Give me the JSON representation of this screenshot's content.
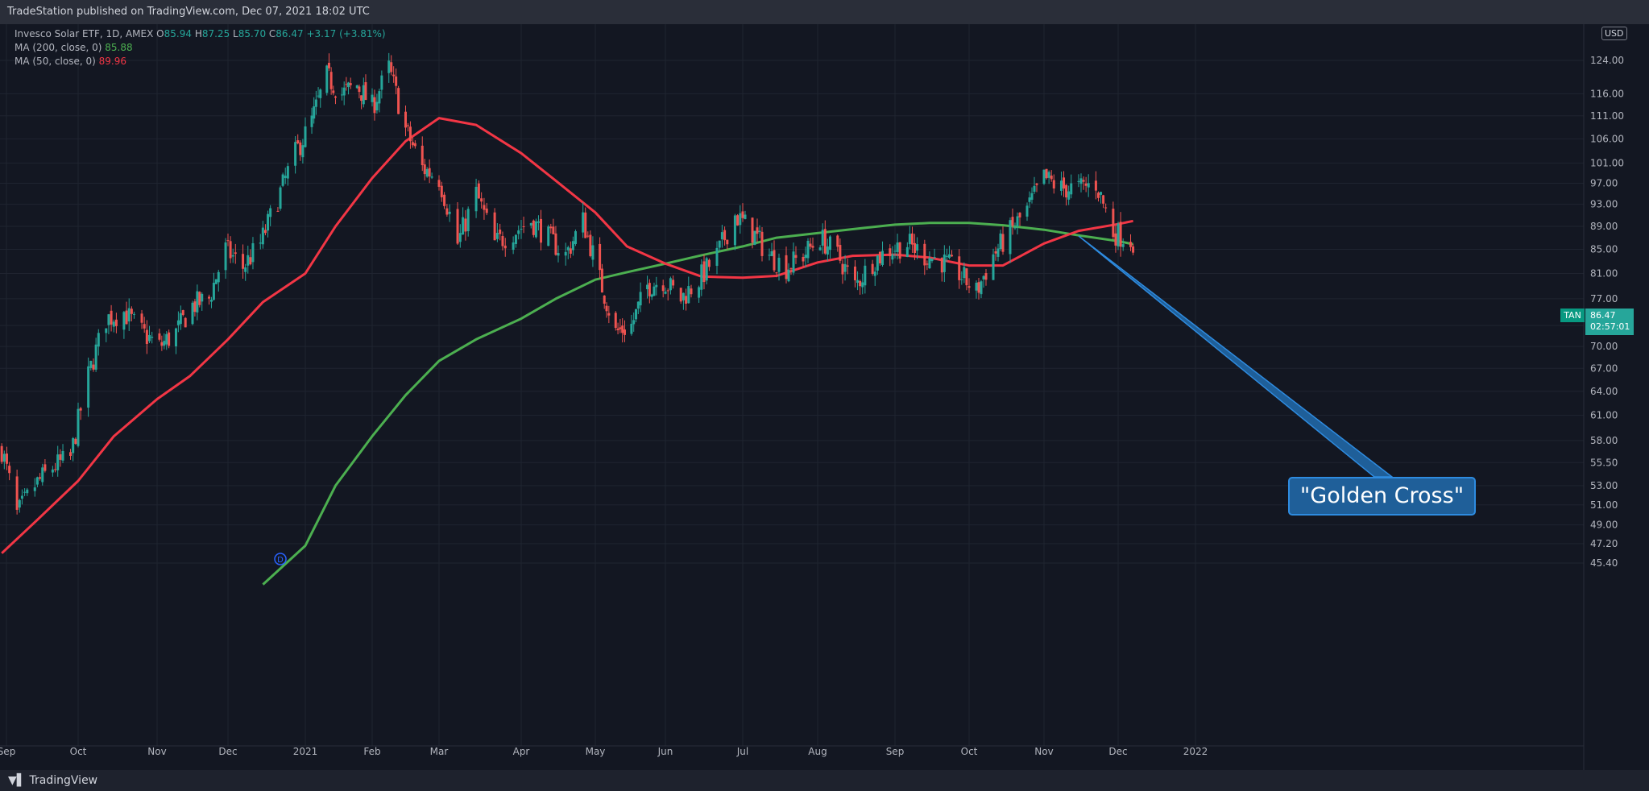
{
  "header": {
    "published": "TradeStation published on TradingView.com, Dec 07, 2021 18:02 UTC"
  },
  "legend": {
    "title": "Invesco Solar ETF, 1D, AMEX",
    "o_label": "O",
    "o_value": "85.94",
    "h_label": "H",
    "h_value": "87.25",
    "l_label": "L",
    "l_value": "85.70",
    "c_label": "C",
    "c_value": "86.47",
    "change": "+3.17 (+3.81%)",
    "ma200_label": "MA (200, close, 0)",
    "ma200_value": "85.88",
    "ma50_label": "MA (50, close, 0)",
    "ma50_value": "89.96"
  },
  "currency": "USD",
  "symbol_label": "TAN",
  "last_price": "86.47",
  "countdown": "02:57:01",
  "annotation": "\"Golden Cross\"",
  "footer": {
    "brand": "TradingView"
  },
  "colors": {
    "up": "#26a69a",
    "down": "#ef5350",
    "ma50": "#f23645",
    "ma200": "#4caf50",
    "background": "#131722"
  },
  "chart_data": {
    "type": "candlestick",
    "y_ticks": [
      45.4,
      47.2,
      49.0,
      51.0,
      53.0,
      55.5,
      58.0,
      61.0,
      64.0,
      67.0,
      70.0,
      73.0,
      77.0,
      81.0,
      85.0,
      89.0,
      93.0,
      97.0,
      101.0,
      106.0,
      111.0,
      116.0,
      124.0
    ],
    "y_scale": "log",
    "ylim": [
      45.4,
      134.0
    ],
    "x_ticks": [
      {
        "date": "2020-09-30",
        "label": "Sep"
      },
      {
        "date": "2020-10-01",
        "label": "Oct"
      },
      {
        "date": "2020-11-01",
        "label": "Nov"
      },
      {
        "date": "2020-12-01",
        "label": "Dec"
      },
      {
        "date": "2021-01-01",
        "label": "2021"
      },
      {
        "date": "2021-02-01",
        "label": "Feb"
      },
      {
        "date": "2021-03-01",
        "label": "Mar"
      },
      {
        "date": "2021-04-01",
        "label": "Apr"
      },
      {
        "date": "2021-05-01",
        "label": "May"
      },
      {
        "date": "2021-06-01",
        "label": "Jun"
      },
      {
        "date": "2021-07-01",
        "label": "Jul"
      },
      {
        "date": "2021-08-01",
        "label": "Aug"
      },
      {
        "date": "2021-09-01",
        "label": "Sep"
      },
      {
        "date": "2021-10-01",
        "label": "Oct"
      },
      {
        "date": "2021-11-01",
        "label": "Nov"
      },
      {
        "date": "2021-12-01",
        "label": "Dec"
      },
      {
        "date": "2022-01-01",
        "label": "2022"
      }
    ],
    "close_path": [
      {
        "date": "2020-09-01",
        "close": 57
      },
      {
        "date": "2020-09-07",
        "close": 50
      },
      {
        "date": "2020-09-14",
        "close": 53
      },
      {
        "date": "2020-09-21",
        "close": 55
      },
      {
        "date": "2020-09-28",
        "close": 56
      },
      {
        "date": "2020-10-05",
        "close": 66
      },
      {
        "date": "2020-10-12",
        "close": 74
      },
      {
        "date": "2020-10-19",
        "close": 75
      },
      {
        "date": "2020-10-26",
        "close": 72
      },
      {
        "date": "2020-11-02",
        "close": 70
      },
      {
        "date": "2020-11-09",
        "close": 72
      },
      {
        "date": "2020-11-16",
        "close": 76
      },
      {
        "date": "2020-11-23",
        "close": 77
      },
      {
        "date": "2020-11-30",
        "close": 85
      },
      {
        "date": "2020-12-07",
        "close": 82
      },
      {
        "date": "2020-12-14",
        "close": 86
      },
      {
        "date": "2020-12-21",
        "close": 94
      },
      {
        "date": "2020-12-28",
        "close": 103
      },
      {
        "date": "2021-01-04",
        "close": 110
      },
      {
        "date": "2021-01-11",
        "close": 120
      },
      {
        "date": "2021-01-18",
        "close": 116
      },
      {
        "date": "2021-01-25",
        "close": 118
      },
      {
        "date": "2021-02-01",
        "close": 113
      },
      {
        "date": "2021-02-08",
        "close": 122
      },
      {
        "date": "2021-02-15",
        "close": 108
      },
      {
        "date": "2021-02-22",
        "close": 100
      },
      {
        "date": "2021-03-01",
        "close": 98
      },
      {
        "date": "2021-03-08",
        "close": 86
      },
      {
        "date": "2021-03-15",
        "close": 95
      },
      {
        "date": "2021-03-22",
        "close": 86
      },
      {
        "date": "2021-03-29",
        "close": 88
      },
      {
        "date": "2021-04-05",
        "close": 90
      },
      {
        "date": "2021-04-12",
        "close": 87
      },
      {
        "date": "2021-04-19",
        "close": 84
      },
      {
        "date": "2021-04-26",
        "close": 90
      },
      {
        "date": "2021-05-03",
        "close": 80
      },
      {
        "date": "2021-05-10",
        "close": 72
      },
      {
        "date": "2021-05-17",
        "close": 73
      },
      {
        "date": "2021-05-24",
        "close": 79
      },
      {
        "date": "2021-05-31",
        "close": 80
      },
      {
        "date": "2021-06-07",
        "close": 77
      },
      {
        "date": "2021-06-14",
        "close": 80
      },
      {
        "date": "2021-06-21",
        "close": 84
      },
      {
        "date": "2021-06-28",
        "close": 91
      },
      {
        "date": "2021-07-05",
        "close": 88
      },
      {
        "date": "2021-07-12",
        "close": 84
      },
      {
        "date": "2021-07-19",
        "close": 82
      },
      {
        "date": "2021-07-26",
        "close": 84
      },
      {
        "date": "2021-08-02",
        "close": 87
      },
      {
        "date": "2021-08-09",
        "close": 84
      },
      {
        "date": "2021-08-16",
        "close": 79
      },
      {
        "date": "2021-08-23",
        "close": 83
      },
      {
        "date": "2021-08-30",
        "close": 85
      },
      {
        "date": "2021-09-06",
        "close": 86
      },
      {
        "date": "2021-09-13",
        "close": 84
      },
      {
        "date": "2021-09-20",
        "close": 83
      },
      {
        "date": "2021-09-27",
        "close": 81
      },
      {
        "date": "2021-10-04",
        "close": 78
      },
      {
        "date": "2021-10-11",
        "close": 84
      },
      {
        "date": "2021-10-18",
        "close": 88
      },
      {
        "date": "2021-10-25",
        "close": 92
      },
      {
        "date": "2021-11-01",
        "close": 98
      },
      {
        "date": "2021-11-08",
        "close": 96
      },
      {
        "date": "2021-11-15",
        "close": 96
      },
      {
        "date": "2021-11-22",
        "close": 97
      },
      {
        "date": "2021-11-29",
        "close": 88
      },
      {
        "date": "2021-12-07",
        "close": 86.47
      }
    ],
    "series": [
      {
        "name": "MA (200, close, 0)",
        "points": [
          {
            "date": "2020-12-15",
            "value": 43.5
          },
          {
            "date": "2021-01-01",
            "value": 47
          },
          {
            "date": "2021-01-15",
            "value": 53
          },
          {
            "date": "2021-02-01",
            "value": 58.5
          },
          {
            "date": "2021-02-15",
            "value": 63.5
          },
          {
            "date": "2021-03-01",
            "value": 68
          },
          {
            "date": "2021-03-15",
            "value": 71
          },
          {
            "date": "2021-04-01",
            "value": 74
          },
          {
            "date": "2021-04-15",
            "value": 77
          },
          {
            "date": "2021-05-01",
            "value": 80
          },
          {
            "date": "2021-05-15",
            "value": 81.2
          },
          {
            "date": "2021-06-01",
            "value": 82.6
          },
          {
            "date": "2021-06-15",
            "value": 84
          },
          {
            "date": "2021-07-01",
            "value": 85.5
          },
          {
            "date": "2021-07-15",
            "value": 87
          },
          {
            "date": "2021-08-01",
            "value": 87.8
          },
          {
            "date": "2021-08-15",
            "value": 88.5
          },
          {
            "date": "2021-09-01",
            "value": 89.3
          },
          {
            "date": "2021-09-15",
            "value": 89.6
          },
          {
            "date": "2021-10-01",
            "value": 89.6
          },
          {
            "date": "2021-10-15",
            "value": 89.2
          },
          {
            "date": "2021-11-01",
            "value": 88.4
          },
          {
            "date": "2021-11-15",
            "value": 87.4
          },
          {
            "date": "2021-12-01",
            "value": 86.4
          },
          {
            "date": "2021-12-07",
            "value": 85.88
          }
        ]
      },
      {
        "name": "MA (50, close, 0)",
        "points": [
          {
            "date": "2020-09-01",
            "value": 46.3
          },
          {
            "date": "2020-09-15",
            "value": 49.5
          },
          {
            "date": "2020-10-01",
            "value": 53.5
          },
          {
            "date": "2020-10-15",
            "value": 58.5
          },
          {
            "date": "2020-11-01",
            "value": 63
          },
          {
            "date": "2020-11-15",
            "value": 66
          },
          {
            "date": "2020-12-01",
            "value": 71
          },
          {
            "date": "2020-12-15",
            "value": 76.5
          },
          {
            "date": "2021-01-01",
            "value": 81
          },
          {
            "date": "2021-01-15",
            "value": 89
          },
          {
            "date": "2021-02-01",
            "value": 98
          },
          {
            "date": "2021-02-15",
            "value": 105.5
          },
          {
            "date": "2021-03-01",
            "value": 110.5
          },
          {
            "date": "2021-03-15",
            "value": 109
          },
          {
            "date": "2021-04-01",
            "value": 103
          },
          {
            "date": "2021-04-15",
            "value": 97.5
          },
          {
            "date": "2021-05-01",
            "value": 91.5
          },
          {
            "date": "2021-05-15",
            "value": 85.5
          },
          {
            "date": "2021-06-01",
            "value": 82.6
          },
          {
            "date": "2021-06-15",
            "value": 80.5
          },
          {
            "date": "2021-07-01",
            "value": 80.3
          },
          {
            "date": "2021-07-15",
            "value": 80.6
          },
          {
            "date": "2021-08-01",
            "value": 82.8
          },
          {
            "date": "2021-08-15",
            "value": 83.9
          },
          {
            "date": "2021-09-01",
            "value": 84.1
          },
          {
            "date": "2021-09-15",
            "value": 83.6
          },
          {
            "date": "2021-10-01",
            "value": 82.3
          },
          {
            "date": "2021-10-15",
            "value": 82.3
          },
          {
            "date": "2021-11-01",
            "value": 86
          },
          {
            "date": "2021-11-15",
            "value": 88.2
          },
          {
            "date": "2021-12-01",
            "value": 89.4
          },
          {
            "date": "2021-12-07",
            "value": 89.96
          }
        ]
      }
    ],
    "annotations": [
      {
        "text": "\"Golden Cross\"",
        "date": "2021-11-15",
        "price": 87.3
      }
    ],
    "markers": [
      {
        "label": "D",
        "date": "2020-12-22"
      }
    ],
    "grid": true
  }
}
